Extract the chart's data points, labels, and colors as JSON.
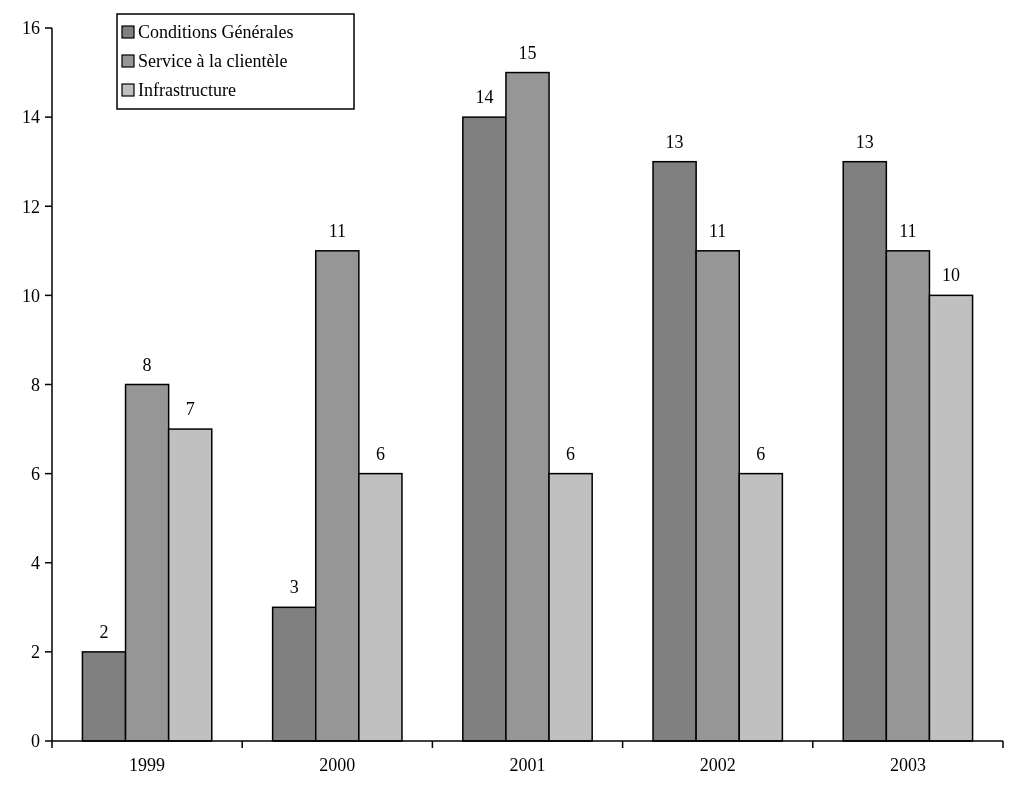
{
  "chart_data": {
    "type": "bar",
    "categories": [
      "1999",
      "2000",
      "2001",
      "2002",
      "2003"
    ],
    "series": [
      {
        "name": "Conditions Générales",
        "color": "#808080",
        "values": [
          2,
          3,
          14,
          13,
          13
        ]
      },
      {
        "name": "Service à la clientèle",
        "color": "#969696",
        "values": [
          8,
          11,
          15,
          11,
          11
        ]
      },
      {
        "name": "Infrastructure",
        "color": "#c0c0c0",
        "values": [
          7,
          6,
          6,
          6,
          10
        ]
      }
    ],
    "ylim": [
      0,
      16
    ],
    "yticks": [
      0,
      2,
      4,
      6,
      8,
      10,
      12,
      14,
      16
    ],
    "data_labels": true,
    "legend": "top left",
    "grid": false
  }
}
